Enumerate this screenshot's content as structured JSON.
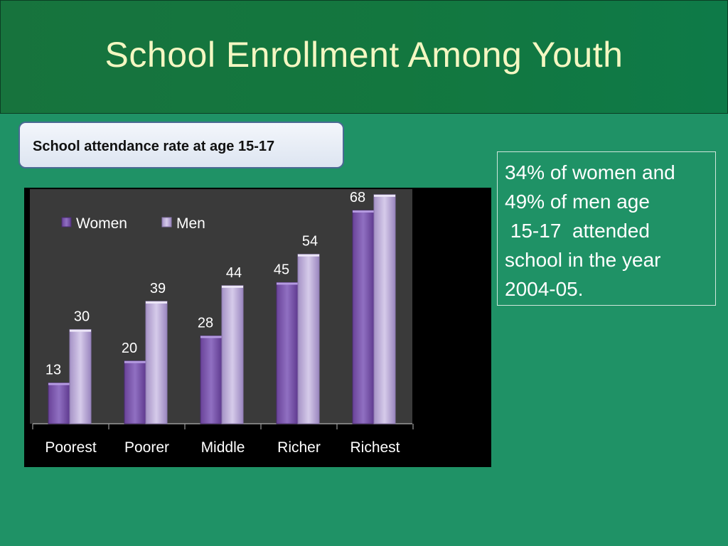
{
  "slide": {
    "title": "School Enrollment Among Youth",
    "subtitle": "School attendance rate at age 15-17",
    "note": "34% of women and\n49% of men age\n 15-17  attended\nschool in the year\n2004-05."
  },
  "colors": {
    "women": "#7a52ad",
    "men": "#b8a6d6",
    "plot_bg": "#3a3a3a",
    "chart_bg": "#000000"
  },
  "chart_data": {
    "type": "bar",
    "categories": [
      "Poorest",
      "Poorer",
      "Middle",
      "Richer",
      "Richest"
    ],
    "series": [
      {
        "name": "Women",
        "values": [
          13,
          20,
          28,
          45,
          68
        ]
      },
      {
        "name": "Men",
        "values": [
          30,
          39,
          44,
          54,
          73
        ]
      }
    ],
    "title": "",
    "xlabel": "",
    "ylabel": "",
    "ylim": [
      0,
      80
    ],
    "grid": false,
    "legend": "top-left",
    "data_labels": true
  }
}
